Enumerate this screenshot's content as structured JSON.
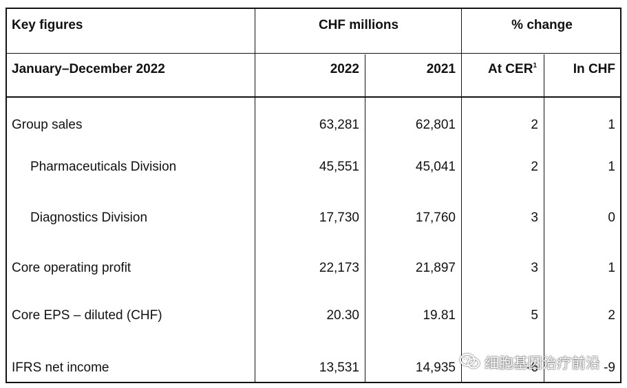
{
  "header": {
    "title": "Key figures",
    "period": "January–December 2022",
    "chf_millions": "CHF millions",
    "pct_change": "% change",
    "col_2022": "2022",
    "col_2021": "2021",
    "col_cer": "At CER",
    "col_cer_footnote": "1",
    "col_chf": "In CHF"
  },
  "rows": [
    {
      "label": "Group sales",
      "v2022": "63,281",
      "v2021": "62,801",
      "cer": "2",
      "chf": "1"
    },
    {
      "label": "Pharmaceuticals Division",
      "v2022": "45,551",
      "v2021": "45,041",
      "cer": "2",
      "chf": "1"
    },
    {
      "label": "Diagnostics Division",
      "v2022": "17,730",
      "v2021": "17,760",
      "cer": "3",
      "chf": "0"
    },
    {
      "label": "Core operating profit",
      "v2022": "22,173",
      "v2021": "21,897",
      "cer": "3",
      "chf": "1"
    },
    {
      "label": "Core EPS – diluted (CHF)",
      "v2022": "20.30",
      "v2021": "19.81",
      "cer": "5",
      "chf": "2"
    },
    {
      "label": "IFRS net income",
      "v2022": "13,531",
      "v2021": "14,935",
      "cer": "-6",
      "chf": "-9"
    }
  ],
  "watermark": {
    "text": "细胞基因治疗前沿",
    "icon": "wechat-icon"
  }
}
